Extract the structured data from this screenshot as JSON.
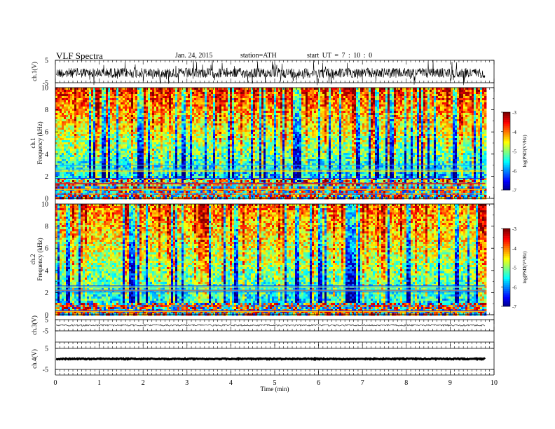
{
  "header": {
    "title": "VLF Spectra",
    "date": "Jan. 24, 2015",
    "station": "station=ATH",
    "start": "start  UT =  7 : 10 : 0"
  },
  "chart_data": [
    {
      "type": "line",
      "panel": "ch1-waveform",
      "ylabel": "ch.1(V)",
      "ylim": [
        -5,
        5
      ],
      "yticks": [
        "5",
        "-5"
      ],
      "xlim": [
        0,
        10
      ],
      "x_end": 9.8
    },
    {
      "type": "heatmap",
      "panel": "ch1-spectrogram",
      "ylabel_lines": [
        "ch.1",
        "Frequency (kHz)"
      ],
      "ylim": [
        0,
        10
      ],
      "yticks": [
        "0",
        "2",
        "4",
        "6",
        "8",
        "10"
      ],
      "xlim": [
        0,
        10
      ],
      "x_end": 9.8,
      "colorbar": {
        "label": "log(PSD(V²/Hz)",
        "range": [
          -7,
          -3
        ],
        "ticks": [
          "-3",
          "-4",
          "-5",
          "-6",
          "-7"
        ]
      }
    },
    {
      "type": "heatmap",
      "panel": "ch2-spectrogram",
      "ylabel_lines": [
        "ch.2",
        "Frequency (kHz)"
      ],
      "ylim": [
        0,
        10
      ],
      "yticks": [
        "0",
        "2",
        "4",
        "6",
        "8",
        "10"
      ],
      "xlim": [
        0,
        10
      ],
      "x_end": 9.8,
      "colorbar": {
        "label": "log(PSD(V²/Hz)",
        "range": [
          -7,
          -3
        ],
        "ticks": [
          "-3",
          "-4",
          "-5",
          "-6",
          "-7"
        ]
      }
    },
    {
      "type": "line",
      "panel": "ch3-waveform",
      "ylabel": "ch.3(V)",
      "ylim": [
        -5,
        5
      ],
      "yticks": [
        "5",
        "-5"
      ],
      "xlim": [
        0,
        10
      ],
      "x_end": 9.8
    },
    {
      "type": "line",
      "panel": "ch4-waveform",
      "ylabel": "ch.4(V)",
      "ylim": [
        -5,
        5
      ],
      "yticks": [
        "5",
        "-5"
      ],
      "xlim": [
        0,
        10
      ],
      "x_end": 9.8
    }
  ],
  "xaxis": {
    "label": "Time  (min)",
    "ticks": [
      "0",
      "1",
      "2",
      "3",
      "4",
      "5",
      "6",
      "7",
      "8",
      "9",
      "10"
    ]
  }
}
